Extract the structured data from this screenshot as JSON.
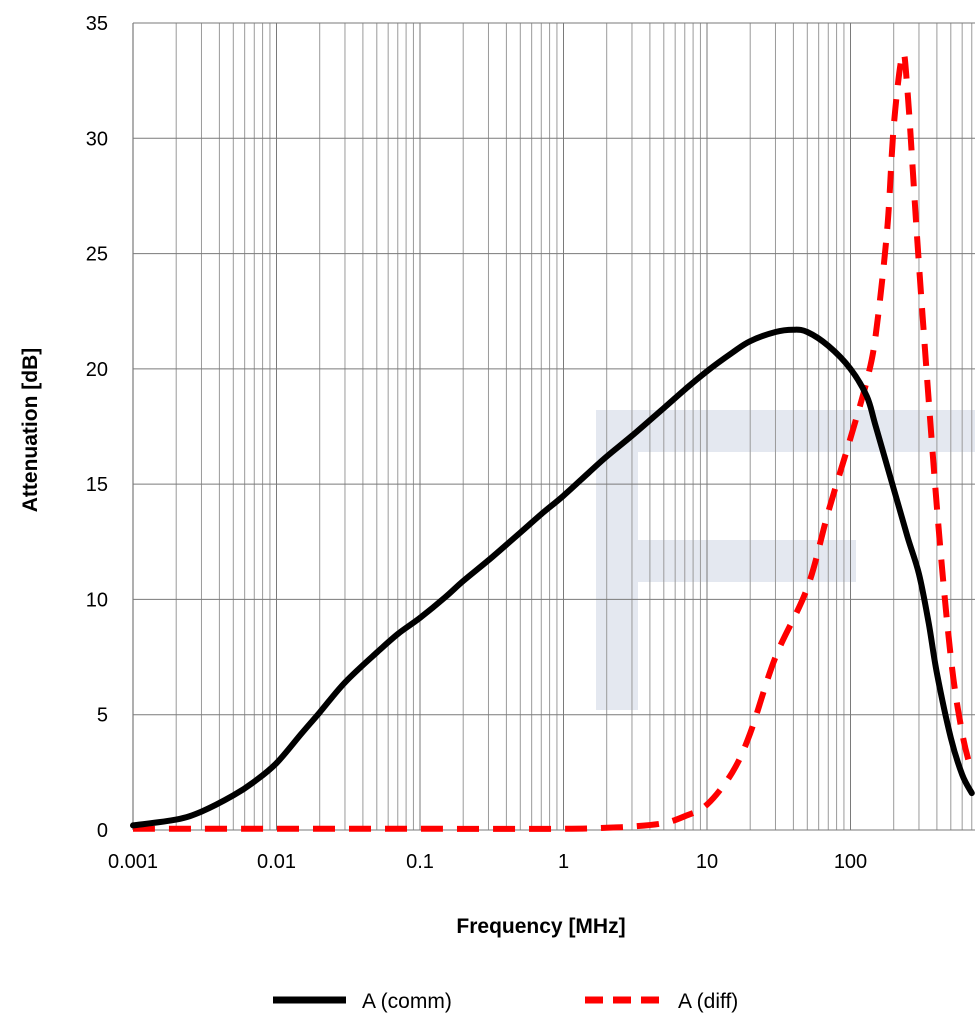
{
  "chart_data": {
    "type": "line",
    "title": "",
    "xlabel": "Frequency [MHz]",
    "ylabel": "Attenuation [dB]",
    "x_scale": "log",
    "xlim": [
      0.001,
      700
    ],
    "ylim": [
      0,
      35
    ],
    "grid": true,
    "legend_position": "bottom",
    "x_ticks": [
      {
        "value": 0.001,
        "label": "0.001"
      },
      {
        "value": 0.01,
        "label": "0.01"
      },
      {
        "value": 0.1,
        "label": "0.1"
      },
      {
        "value": 1,
        "label": "1"
      },
      {
        "value": 10,
        "label": "10"
      },
      {
        "value": 100,
        "label": "100"
      }
    ],
    "y_ticks": [
      {
        "value": 0,
        "label": "0"
      },
      {
        "value": 5,
        "label": "5"
      },
      {
        "value": 10,
        "label": "10"
      },
      {
        "value": 15,
        "label": "15"
      },
      {
        "value": 20,
        "label": "20"
      },
      {
        "value": 25,
        "label": "25"
      },
      {
        "value": 30,
        "label": "30"
      },
      {
        "value": 35,
        "label": "35"
      }
    ],
    "series": [
      {
        "name": "A (comm)",
        "color": "#000000",
        "dash": "solid",
        "points": [
          [
            0.001,
            0.2
          ],
          [
            0.002,
            0.45
          ],
          [
            0.003,
            0.8
          ],
          [
            0.005,
            1.5
          ],
          [
            0.007,
            2.1
          ],
          [
            0.01,
            2.9
          ],
          [
            0.015,
            4.2
          ],
          [
            0.02,
            5.1
          ],
          [
            0.03,
            6.4
          ],
          [
            0.05,
            7.7
          ],
          [
            0.07,
            8.5
          ],
          [
            0.1,
            9.2
          ],
          [
            0.15,
            10.1
          ],
          [
            0.2,
            10.8
          ],
          [
            0.3,
            11.7
          ],
          [
            0.5,
            12.9
          ],
          [
            0.7,
            13.7
          ],
          [
            1,
            14.5
          ],
          [
            1.5,
            15.5
          ],
          [
            2,
            16.2
          ],
          [
            3,
            17.1
          ],
          [
            5,
            18.3
          ],
          [
            7,
            19.1
          ],
          [
            10,
            19.9
          ],
          [
            15,
            20.7
          ],
          [
            20,
            21.2
          ],
          [
            30,
            21.6
          ],
          [
            40,
            21.7
          ],
          [
            50,
            21.6
          ],
          [
            70,
            21.0
          ],
          [
            100,
            20.0
          ],
          [
            130,
            18.8
          ],
          [
            150,
            17.5
          ],
          [
            200,
            14.8
          ],
          [
            250,
            12.7
          ],
          [
            300,
            11.1
          ],
          [
            350,
            9.0
          ],
          [
            400,
            6.8
          ],
          [
            500,
            4.0
          ],
          [
            600,
            2.4
          ],
          [
            700,
            1.6
          ]
        ]
      },
      {
        "name": "A (diff)",
        "color": "#ff0000",
        "dash": "dashed",
        "points": [
          [
            0.001,
            0.05
          ],
          [
            0.01,
            0.05
          ],
          [
            0.1,
            0.05
          ],
          [
            1,
            0.05
          ],
          [
            2,
            0.1
          ],
          [
            3,
            0.15
          ],
          [
            5,
            0.3
          ],
          [
            7,
            0.6
          ],
          [
            10,
            1.1
          ],
          [
            15,
            2.5
          ],
          [
            20,
            4.2
          ],
          [
            30,
            7.5
          ],
          [
            50,
            10.5
          ],
          [
            70,
            13.8
          ],
          [
            100,
            17.0
          ],
          [
            130,
            19.5
          ],
          [
            150,
            21.5
          ],
          [
            180,
            26.0
          ],
          [
            200,
            30.5
          ],
          [
            230,
            33.6
          ],
          [
            250,
            32.0
          ],
          [
            300,
            24.5
          ],
          [
            400,
            14.0
          ],
          [
            500,
            7.5
          ],
          [
            600,
            4.2
          ],
          [
            700,
            2.5
          ]
        ]
      }
    ]
  }
}
